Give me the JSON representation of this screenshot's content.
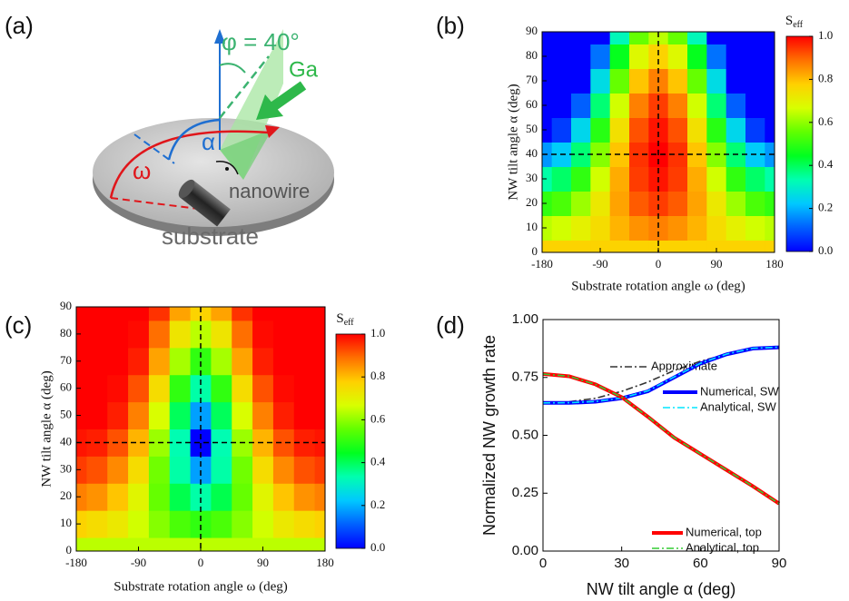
{
  "diagram": {
    "label": "(a)",
    "angle": "φ = 40°",
    "beam": "Ga",
    "alpha": "α",
    "omega": "ω",
    "nanowire": "nanowire",
    "substrate": "substrate"
  },
  "chart_data": [
    {
      "type": "heatmap",
      "label": "(b)",
      "x": [
        -180,
        -150,
        -120,
        -90,
        -60,
        -30,
        0,
        30,
        60,
        90,
        120,
        150,
        180
      ],
      "y": [
        0,
        10,
        20,
        30,
        40,
        50,
        60,
        70,
        80,
        90
      ],
      "z": [
        [
          0.77,
          0.77,
          0.77,
          0.77,
          0.77,
          0.77,
          0.77,
          0.77,
          0.77,
          0.77,
          0.77,
          0.77,
          0.77
        ],
        [
          0.64,
          0.66,
          0.7,
          0.75,
          0.81,
          0.85,
          0.87,
          0.85,
          0.81,
          0.75,
          0.7,
          0.66,
          0.64
        ],
        [
          0.5,
          0.53,
          0.61,
          0.72,
          0.83,
          0.91,
          0.94,
          0.91,
          0.83,
          0.72,
          0.61,
          0.53,
          0.5
        ],
        [
          0.34,
          0.39,
          0.5,
          0.66,
          0.82,
          0.94,
          0.98,
          0.94,
          0.82,
          0.66,
          0.5,
          0.39,
          0.34
        ],
        [
          0.17,
          0.23,
          0.38,
          0.59,
          0.79,
          0.95,
          1,
          0.95,
          0.79,
          0.59,
          0.38,
          0.23,
          0.17
        ],
        [
          0,
          0.07,
          0.25,
          0.49,
          0.74,
          0.92,
          0.98,
          0.92,
          0.74,
          0.49,
          0.25,
          0.07,
          0
        ],
        [
          0,
          0,
          0.11,
          0.38,
          0.66,
          0.87,
          0.94,
          0.87,
          0.66,
          0.38,
          0.11,
          0,
          0
        ],
        [
          0,
          0,
          0,
          0.26,
          0.56,
          0.79,
          0.87,
          0.79,
          0.56,
          0.26,
          0,
          0,
          0
        ],
        [
          0,
          0,
          0,
          0.13,
          0.45,
          0.68,
          0.77,
          0.68,
          0.45,
          0.13,
          0,
          0,
          0
        ],
        [
          0,
          0,
          0,
          0,
          0.32,
          0.56,
          0.64,
          0.56,
          0.32,
          0,
          0,
          0,
          0
        ]
      ],
      "xlim": [
        -180,
        180
      ],
      "xticks": [
        -180,
        -90,
        0,
        90,
        180
      ],
      "ylim": [
        0,
        90
      ],
      "yticks": [
        0,
        10,
        20,
        30,
        40,
        50,
        60,
        70,
        80,
        90
      ],
      "xlabel": "Substrate rotation angle ω (deg)",
      "ylabel": "NW tilt angle α (deg)",
      "colorbar_label": "S",
      "colorbar_label_sub": "eff",
      "clim": [
        0,
        1
      ],
      "cticks": [
        {
          "value": 0,
          "label": "0.0"
        },
        0.2,
        0.4,
        0.6,
        0.8,
        {
          "value": 1,
          "label": "1.0"
        }
      ],
      "crosshair": {
        "x": 0,
        "y": 40
      },
      "colormap": [
        "#0000ff",
        "#0060ff",
        "#00c8ff",
        "#00ffb0",
        "#00ff20",
        "#60ff00",
        "#d8ff00",
        "#ffd000",
        "#ff7000",
        "#ff0000"
      ]
    },
    {
      "type": "heatmap",
      "label": "(c)",
      "x": [
        -180,
        -150,
        -120,
        -90,
        -60,
        -30,
        0,
        30,
        60,
        90,
        120,
        150,
        180
      ],
      "y": [
        0,
        10,
        20,
        30,
        40,
        50,
        60,
        70,
        80,
        90
      ],
      "z": [
        [
          0.64,
          0.64,
          0.64,
          0.64,
          0.64,
          0.64,
          0.64,
          0.64,
          0.64,
          0.64,
          0.64,
          0.64,
          0.64
        ],
        [
          0.77,
          0.75,
          0.72,
          0.66,
          0.59,
          0.53,
          0.5,
          0.53,
          0.59,
          0.66,
          0.72,
          0.75,
          0.77
        ],
        [
          0.87,
          0.85,
          0.79,
          0.69,
          0.56,
          0.41,
          0.34,
          0.41,
          0.56,
          0.69,
          0.79,
          0.85,
          0.87
        ],
        [
          0.94,
          0.92,
          0.86,
          0.75,
          0.57,
          0.34,
          0.18,
          0.34,
          0.57,
          0.75,
          0.86,
          0.92,
          0.94
        ],
        [
          0.98,
          0.97,
          0.92,
          0.81,
          0.61,
          0.33,
          0,
          0.33,
          0.61,
          0.81,
          0.92,
          0.97,
          0.98
        ],
        [
          1,
          1,
          0.97,
          0.87,
          0.67,
          0.4,
          0.18,
          0.4,
          0.67,
          0.87,
          0.97,
          1,
          1
        ],
        [
          1,
          1,
          0.99,
          0.92,
          0.75,
          0.5,
          0.34,
          0.5,
          0.75,
          0.92,
          0.99,
          1,
          1
        ],
        [
          1,
          1,
          1,
          0.97,
          0.83,
          0.62,
          0.5,
          0.62,
          0.83,
          0.97,
          1,
          1,
          1
        ],
        [
          1,
          1,
          1,
          0.99,
          0.89,
          0.73,
          0.64,
          0.73,
          0.89,
          0.99,
          1,
          1,
          1
        ],
        [
          1,
          1,
          1,
          1,
          0.95,
          0.83,
          0.77,
          0.83,
          0.95,
          1,
          1,
          1,
          1
        ]
      ],
      "xlim": [
        -180,
        180
      ],
      "xticks": [
        -180,
        -90,
        0,
        90,
        180
      ],
      "ylim": [
        0,
        90
      ],
      "yticks": [
        0,
        10,
        20,
        30,
        40,
        50,
        60,
        70,
        80,
        90
      ],
      "xlabel": "Substrate rotation angle ω (deg)",
      "ylabel": "NW tilt angle α (deg)",
      "colorbar_label": "S",
      "colorbar_label_sub": "eff",
      "clim": [
        0,
        1
      ],
      "cticks": [
        {
          "value": 0,
          "label": "0.0"
        },
        0.2,
        0.4,
        0.6,
        0.8,
        {
          "value": 1,
          "label": "1.0"
        }
      ],
      "crosshair": {
        "x": 0,
        "y": 40
      },
      "colormap": [
        "#0000ff",
        "#0060ff",
        "#00c8ff",
        "#00ffb0",
        "#00ff20",
        "#60ff00",
        "#d8ff00",
        "#ffd000",
        "#ff7000",
        "#ff0000"
      ]
    },
    {
      "type": "line",
      "label": "(d)",
      "x": [
        0,
        10,
        20,
        30,
        40,
        50,
        60,
        70,
        80,
        90
      ],
      "xlim": [
        0,
        90
      ],
      "xticks": [
        0,
        30,
        60,
        90
      ],
      "ylim": [
        0,
        1
      ],
      "yticks": [
        {
          "value": 0,
          "label": "0.00"
        },
        {
          "value": 0.25,
          "label": "0.25"
        },
        {
          "value": 0.5,
          "label": "0.50"
        },
        {
          "value": 0.75,
          "label": "0.75"
        },
        {
          "value": 1,
          "label": "1.00"
        }
      ],
      "xlabel": "NW tilt angle α (deg)",
      "ylabel": "Normalized NW growth rate",
      "series": [
        {
          "name": "Approximate",
          "color": "#333333",
          "dash": true,
          "values": [
            null,
            0.645,
            0.66,
            0.69,
            0.73,
            0.78,
            0.82,
            0.85,
            0.875,
            0.885
          ]
        },
        {
          "name": "Numerical, SW",
          "color": "#0000ff",
          "dash": false,
          "values": [
            0.64,
            0.64,
            0.645,
            0.66,
            0.69,
            0.75,
            0.81,
            0.85,
            0.875,
            0.88
          ]
        },
        {
          "name": "Analytical, SW",
          "color": "#00e5ff",
          "dash": true,
          "values": [
            0.64,
            0.641,
            0.646,
            0.661,
            0.692,
            0.752,
            0.811,
            0.851,
            0.876,
            0.881
          ]
        },
        {
          "name": "Numerical, top",
          "color": "#ff0000",
          "dash": false,
          "values": [
            0.765,
            0.755,
            0.72,
            0.665,
            0.58,
            0.49,
            0.42,
            0.35,
            0.28,
            0.205
          ]
        },
        {
          "name": "Analytical, top",
          "color": "#33cc33",
          "dash": true,
          "values": [
            0.765,
            0.755,
            0.72,
            0.665,
            0.58,
            0.49,
            0.42,
            0.35,
            0.28,
            0.205
          ]
        }
      ]
    }
  ]
}
